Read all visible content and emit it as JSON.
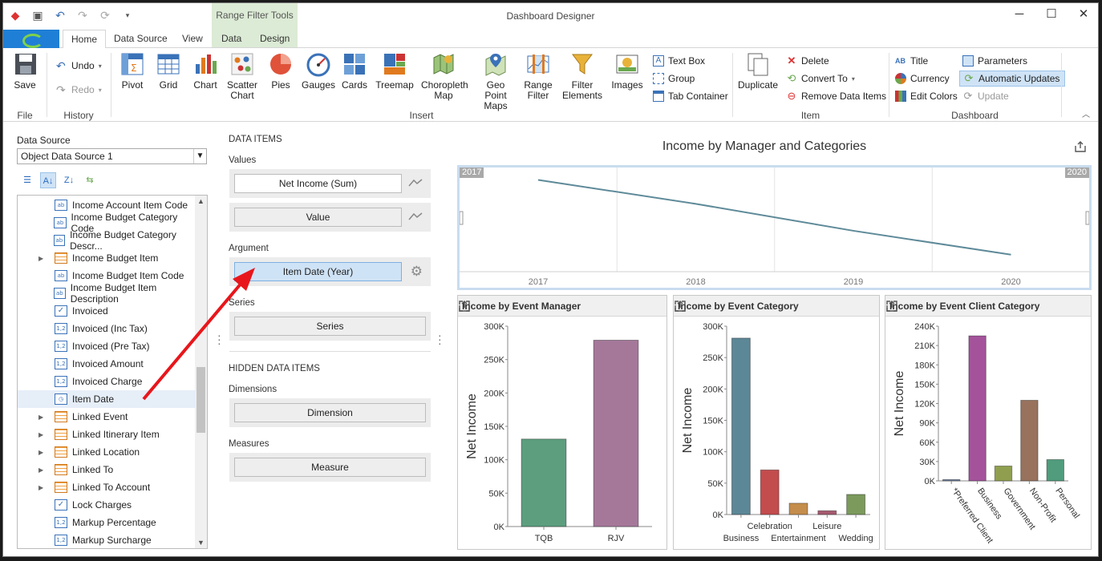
{
  "window": {
    "title": "Dashboard Designer",
    "context_group": "Range Filter Tools"
  },
  "tabs": [
    "Home",
    "Data Source",
    "View",
    "Data",
    "Design"
  ],
  "ribbon": {
    "file": {
      "group": "File",
      "save": "Save"
    },
    "history": {
      "group": "History",
      "undo": "Undo",
      "redo": "Redo"
    },
    "insert": {
      "group": "Insert",
      "items": [
        "Pivot",
        "Grid",
        "Chart",
        "Scatter Chart",
        "Pies",
        "Gauges",
        "Cards",
        "Treemap",
        "Choropleth Map",
        "Geo Point Maps",
        "Range Filter",
        "Filter Elements",
        "Images"
      ],
      "small": [
        "Text Box",
        "Group",
        "Tab Container"
      ]
    },
    "item": {
      "group": "Item",
      "duplicate": "Duplicate",
      "delete": "Delete",
      "convert_to": "Convert To",
      "remove_data_items": "Remove Data Items"
    },
    "dashboard": {
      "group": "Dashboard",
      "title": "Title",
      "currency": "Currency",
      "edit_colors": "Edit Colors",
      "parameters": "Parameters",
      "automatic_updates": "Automatic Updates",
      "update": "Update"
    }
  },
  "data_source": {
    "label": "Data Source",
    "selected": "Object Data Source 1",
    "fields": [
      {
        "label": "Income Account Item Code",
        "type": "text",
        "expandable": false
      },
      {
        "label": "Income Budget Category Code",
        "type": "text",
        "expandable": false
      },
      {
        "label": "Income Budget Category Descr...",
        "type": "text",
        "expandable": false
      },
      {
        "label": "Income Budget Item",
        "type": "table",
        "expandable": true
      },
      {
        "label": "Income Budget Item Code",
        "type": "text",
        "expandable": false
      },
      {
        "label": "Income Budget Item Description",
        "type": "text",
        "expandable": false
      },
      {
        "label": "Invoiced",
        "type": "bool",
        "expandable": false
      },
      {
        "label": "Invoiced (Inc Tax)",
        "type": "num",
        "expandable": false
      },
      {
        "label": "Invoiced (Pre Tax)",
        "type": "num",
        "expandable": false
      },
      {
        "label": "Invoiced Amount",
        "type": "num",
        "expandable": false
      },
      {
        "label": "Invoiced Charge",
        "type": "num",
        "expandable": false
      },
      {
        "label": "Item Date",
        "type": "date",
        "expandable": false,
        "selected": true
      },
      {
        "label": "Linked Event",
        "type": "table",
        "expandable": true
      },
      {
        "label": "Linked Itinerary Item",
        "type": "table",
        "expandable": true
      },
      {
        "label": "Linked Location",
        "type": "table",
        "expandable": true
      },
      {
        "label": "Linked To",
        "type": "table",
        "expandable": true
      },
      {
        "label": "Linked To Account",
        "type": "table",
        "expandable": true
      },
      {
        "label": "Lock Charges",
        "type": "bool",
        "expandable": false
      },
      {
        "label": "Markup Percentage",
        "type": "num",
        "expandable": false
      },
      {
        "label": "Markup Surcharge",
        "type": "num",
        "expandable": false
      }
    ]
  },
  "data_items": {
    "heading": "DATA ITEMS",
    "values_label": "Values",
    "values": [
      "Net Income (Sum)",
      "Value"
    ],
    "argument_label": "Argument",
    "argument": "Item Date (Year)",
    "series_label": "Series",
    "series": "Series",
    "hidden_heading": "HIDDEN DATA ITEMS",
    "dimensions_label": "Dimensions",
    "dimension": "Dimension",
    "measures_label": "Measures",
    "measure": "Measure"
  },
  "dashboard": {
    "title": "Income by Manager and Categories",
    "range_filter": {
      "start_label": "2017",
      "end_label": "2020"
    }
  },
  "chart_data": [
    {
      "type": "line",
      "title": "",
      "x": [
        "2017",
        "2018",
        "2019",
        "2020"
      ],
      "series": [
        {
          "values": [
            280000,
            200000,
            110000,
            30000
          ]
        }
      ],
      "color": "#5e8a99"
    },
    {
      "type": "bar",
      "title": "Income by Event Manager",
      "ylabel": "Net Income",
      "categories": [
        "TQB",
        "RJV"
      ],
      "values": [
        131000,
        279000
      ],
      "colors": [
        "#5d9e7f",
        "#a5789a"
      ],
      "ylim": [
        0,
        300000
      ],
      "yticks": [
        "0K",
        "50K",
        "100K",
        "150K",
        "200K",
        "250K",
        "300K"
      ]
    },
    {
      "type": "bar",
      "title": "Income by Event Category",
      "ylabel": "Net Income",
      "categories": [
        "Business",
        "Celebration",
        "Entertainment",
        "Leisure",
        "Wedding"
      ],
      "values": [
        281000,
        71000,
        18000,
        6000,
        32000
      ],
      "colors": [
        "#5c8796",
        "#c34c4d",
        "#c48d4c",
        "#a65a6f",
        "#7b9a5c"
      ],
      "ylim": [
        0,
        300000
      ],
      "yticks": [
        "0K",
        "50K",
        "100K",
        "150K",
        "200K",
        "250K",
        "300K"
      ]
    },
    {
      "type": "bar",
      "title": "Income by Event Client Category",
      "ylabel": "Net Income",
      "categories": [
        "*Preferred Client",
        "Business",
        "Government",
        "Non-Profit",
        "Personal"
      ],
      "values": [
        2000,
        225000,
        23000,
        125000,
        33000
      ],
      "colors": [
        "#6c7fa0",
        "#a4539b",
        "#8f9f4f",
        "#98725d",
        "#509c7c"
      ],
      "ylim": [
        0,
        240000
      ],
      "yticks": [
        "0K",
        "30K",
        "60K",
        "90K",
        "120K",
        "150K",
        "180K",
        "210K",
        "240K"
      ]
    }
  ]
}
